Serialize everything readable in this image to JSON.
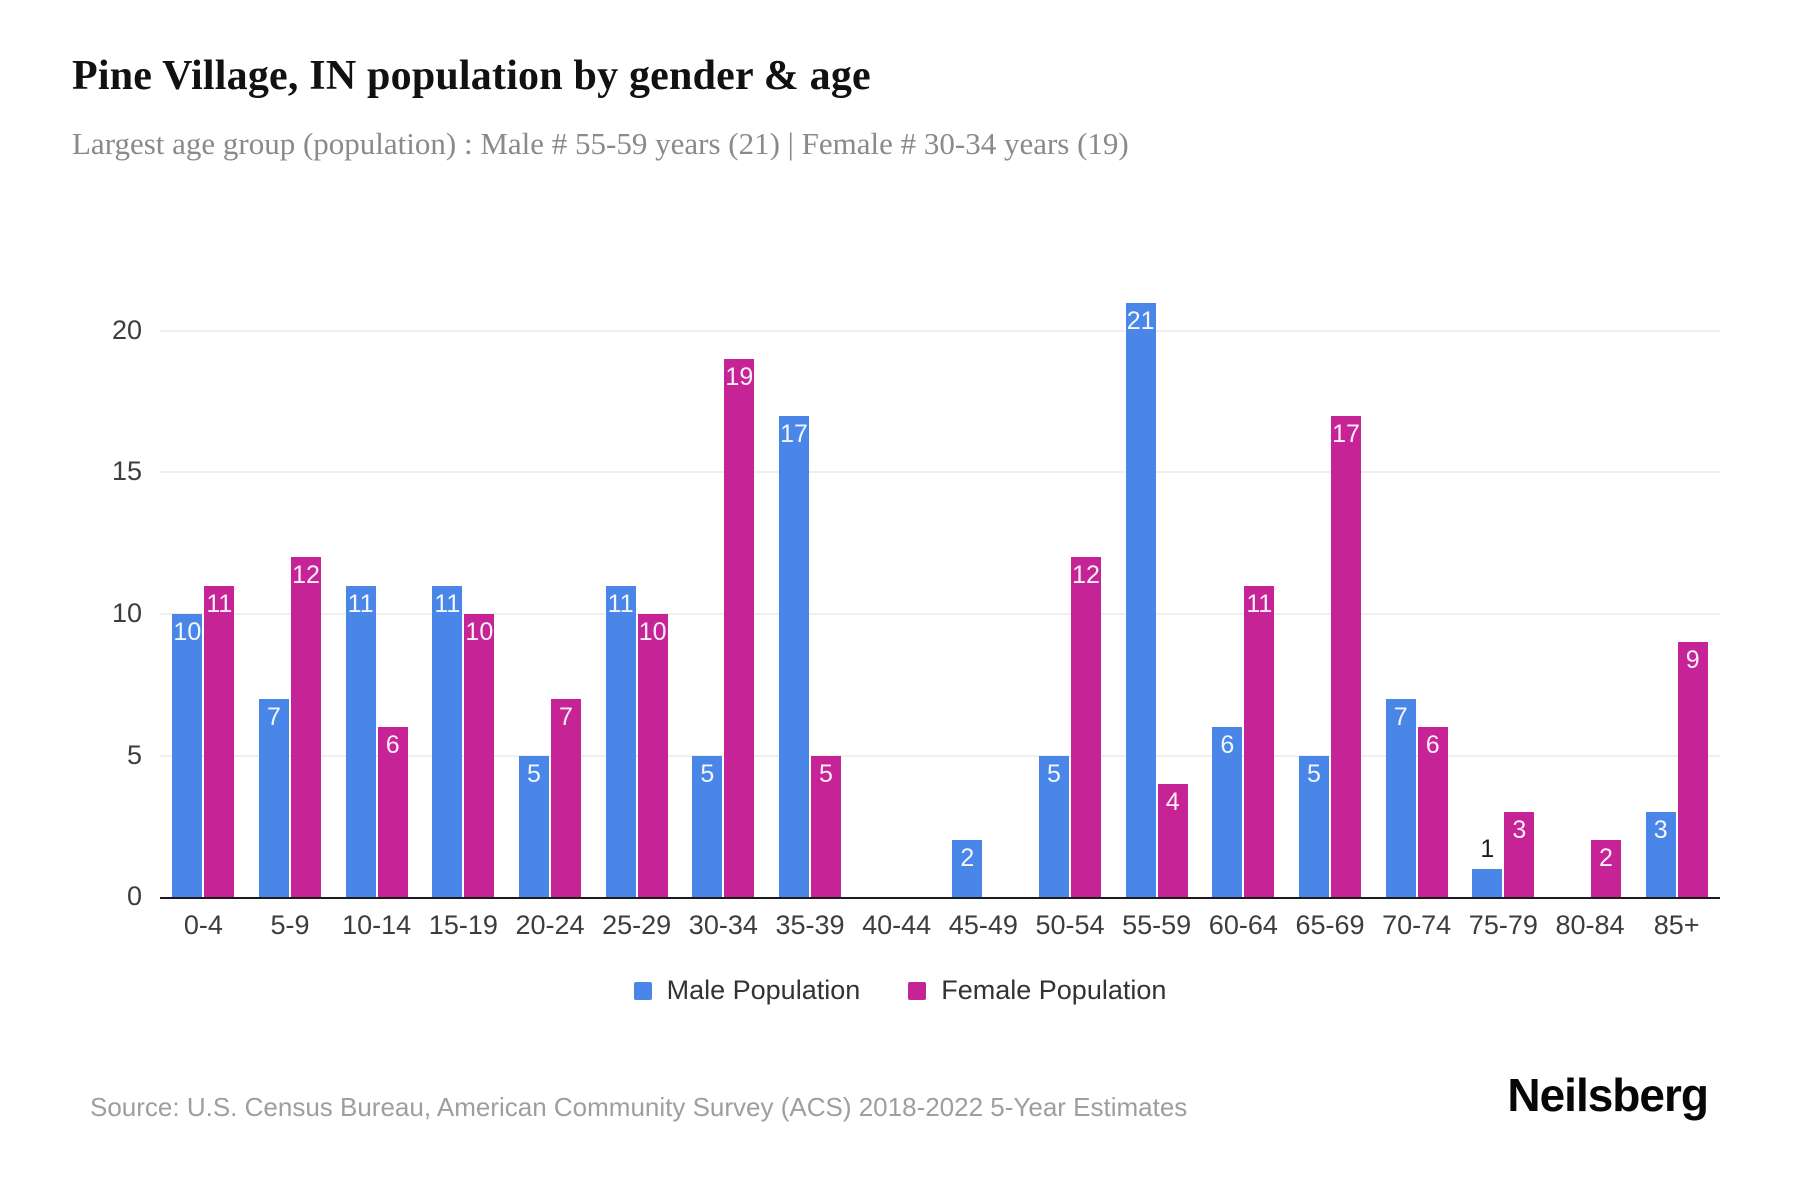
{
  "header": {
    "title": "Pine Village, IN population by gender & age",
    "subtitle": "Largest age group (population) : Male # 55-59 years (21) | Female # 30-34 years (19)"
  },
  "chart_data": {
    "type": "bar",
    "title": "Pine Village, IN population by gender & age",
    "categories": [
      "0-4",
      "5-9",
      "10-14",
      "15-19",
      "20-24",
      "25-29",
      "30-34",
      "35-39",
      "40-44",
      "45-49",
      "50-54",
      "55-59",
      "60-64",
      "65-69",
      "70-74",
      "75-79",
      "80-84",
      "85+"
    ],
    "series": [
      {
        "name": "Male Population",
        "color": "#4A86E8",
        "values": [
          10,
          7,
          11,
          11,
          5,
          11,
          5,
          17,
          0,
          2,
          5,
          21,
          6,
          5,
          7,
          1,
          0,
          3
        ]
      },
      {
        "name": "Female Population",
        "color": "#C52396",
        "values": [
          11,
          12,
          6,
          10,
          7,
          10,
          19,
          5,
          0,
          0,
          12,
          4,
          11,
          17,
          6,
          3,
          2,
          9
        ]
      }
    ],
    "xlabel": "",
    "ylabel": "",
    "ylim": [
      0,
      21.8
    ],
    "yticks": [
      0,
      5,
      10,
      15,
      20
    ],
    "grid": "horizontal",
    "legend_position": "bottom",
    "bar_value_labels": "shown"
  },
  "footer": {
    "source": "Source: U.S. Census Bureau, American Community Survey (ACS) 2018-2022 5-Year Estimates",
    "brand": "Neilsberg"
  }
}
